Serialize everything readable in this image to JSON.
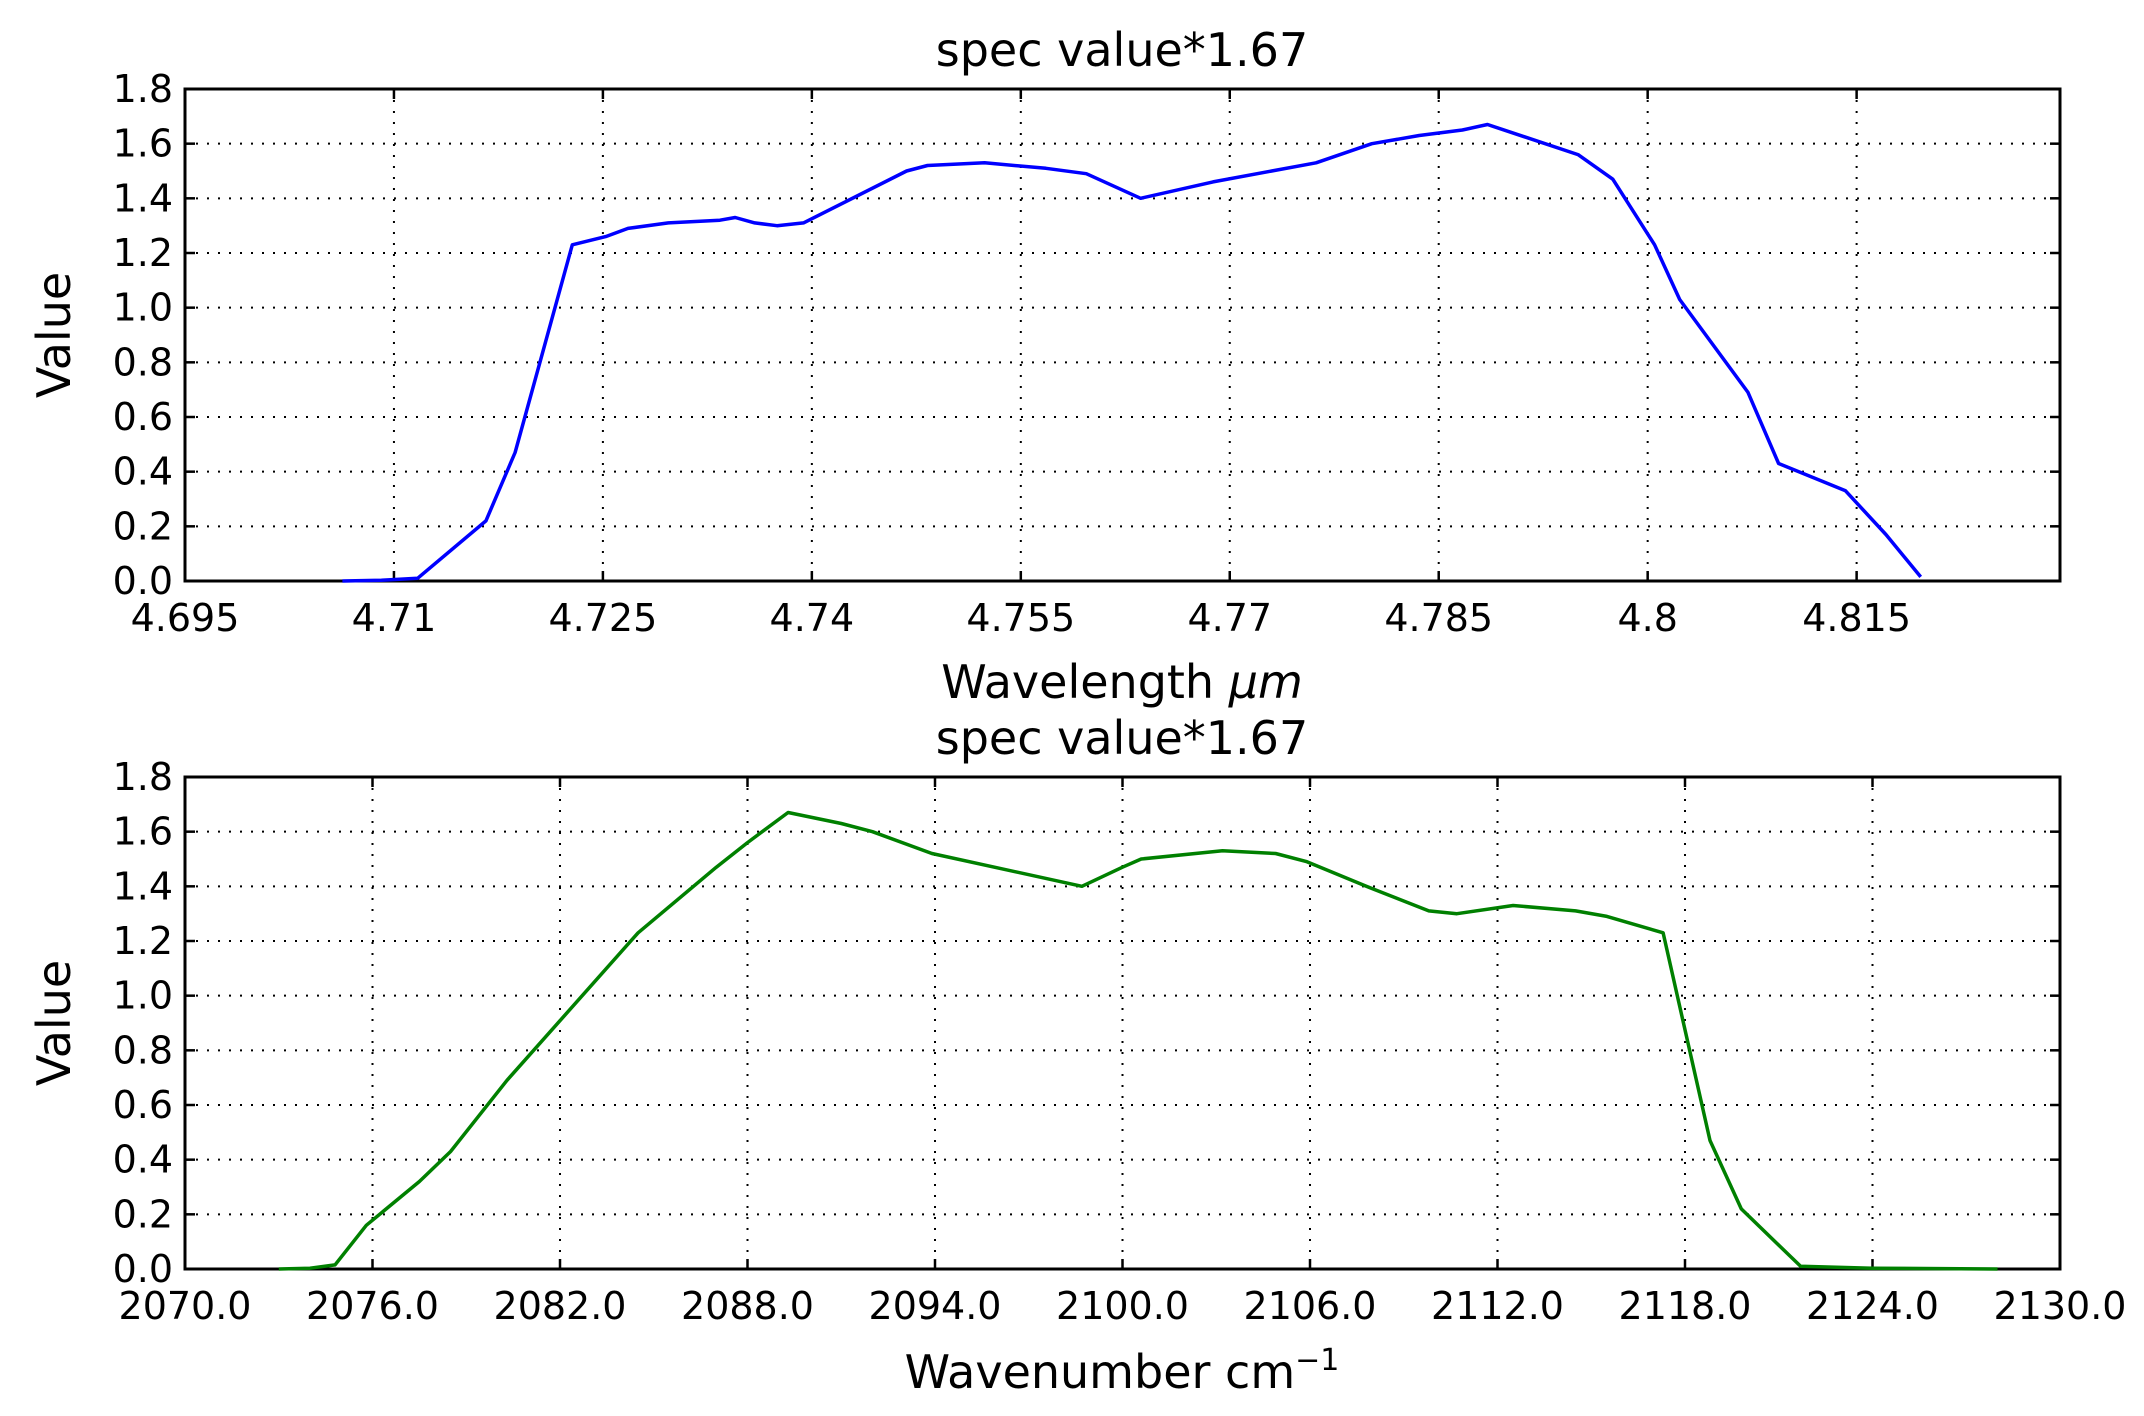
{
  "chart_data": [
    {
      "type": "line",
      "title": "spec value*1.67",
      "xlabel": "Wavelength",
      "xlabel_unit": "μm",
      "ylabel": "Value",
      "xlim": [
        4.695,
        4.8296
      ],
      "ylim": [
        0.0,
        1.8
      ],
      "xticks": [
        4.695,
        4.71,
        4.725,
        4.74,
        4.755,
        4.77,
        4.785,
        4.8,
        4.815
      ],
      "xtick_labels": [
        "4.695",
        "4.71",
        "4.725",
        "4.74",
        "4.755",
        "4.77",
        "4.785",
        "4.8",
        "4.815"
      ],
      "yticks": [
        0.0,
        0.2,
        0.4,
        0.6,
        0.8,
        1.0,
        1.2,
        1.4,
        1.6,
        1.8
      ],
      "ytick_labels": [
        "0.0",
        "0.2",
        "0.4",
        "0.6",
        "0.8",
        "1.0",
        "1.2",
        "1.4",
        "1.6",
        "1.8"
      ],
      "grid": true,
      "color": "#0000ff",
      "series": [
        {
          "x": [
            4.7063,
            4.7091,
            4.7117,
            4.7166,
            4.7187,
            4.7228,
            4.7252,
            4.7268,
            4.7297,
            4.7334,
            4.7345,
            4.7359,
            4.7375,
            4.7394,
            4.7468,
            4.7483,
            4.7524,
            4.7568,
            4.7597,
            4.7636,
            4.7688,
            4.7762,
            4.7802,
            4.7836,
            4.7867,
            4.7885,
            4.795,
            4.7975,
            4.8005,
            4.8023,
            4.8072,
            4.8094,
            4.8142,
            4.8171,
            4.8196
          ],
          "y": [
            0.0,
            0.003,
            0.01,
            0.22,
            0.47,
            1.23,
            1.26,
            1.29,
            1.31,
            1.32,
            1.33,
            1.31,
            1.3,
            1.31,
            1.5,
            1.52,
            1.53,
            1.51,
            1.49,
            1.4,
            1.46,
            1.53,
            1.6,
            1.63,
            1.65,
            1.67,
            1.56,
            1.47,
            1.23,
            1.03,
            0.69,
            0.43,
            0.33,
            0.17,
            0.015
          ]
        }
      ]
    },
    {
      "type": "line",
      "title": "spec value*1.67",
      "xlabel": "Wavenumber cm",
      "xlabel_unit": "−1",
      "ylabel": "Value",
      "xlim": [
        2070.0,
        2130.0
      ],
      "ylim": [
        0.0,
        1.8
      ],
      "xticks": [
        2070.0,
        2076.0,
        2082.0,
        2088.0,
        2094.0,
        2100.0,
        2106.0,
        2112.0,
        2118.0,
        2124.0,
        2130.0
      ],
      "xtick_labels": [
        "2070.0",
        "2076.0",
        "2082.0",
        "2088.0",
        "2094.0",
        "2100.0",
        "2106.0",
        "2112.0",
        "2118.0",
        "2124.0",
        "2130.0"
      ],
      "yticks": [
        0.0,
        0.2,
        0.4,
        0.6,
        0.8,
        1.0,
        1.2,
        1.4,
        1.6,
        1.8
      ],
      "ytick_labels": [
        "0.0",
        "0.2",
        "0.4",
        "0.6",
        "0.8",
        "1.0",
        "1.2",
        "1.4",
        "1.6",
        "1.8"
      ],
      "grid": true,
      "color": "#008000",
      "series": [
        {
          "x": [
            2073.0,
            2074.0,
            2074.8,
            2075.8,
            2077.5,
            2078.5,
            2080.3,
            2084.5,
            2087.0,
            2088.0,
            2089.3,
            2091.0,
            2092.0,
            2093.9,
            2098.7,
            2100.0,
            2100.6,
            2103.2,
            2104.9,
            2105.9,
            2107.8,
            2109.8,
            2110.7,
            2112.5,
            2114.5,
            2115.5,
            2117.3,
            2118.8,
            2119.8,
            2121.7,
            2124.0,
            2128.0
          ],
          "y": [
            0.0,
            0.003,
            0.015,
            0.16,
            0.32,
            0.43,
            0.69,
            1.23,
            1.47,
            1.56,
            1.67,
            1.63,
            1.6,
            1.52,
            1.4,
            1.47,
            1.5,
            1.53,
            1.52,
            1.49,
            1.4,
            1.31,
            1.3,
            1.33,
            1.31,
            1.29,
            1.23,
            0.47,
            0.22,
            0.01,
            0.003,
            0.0
          ]
        }
      ]
    }
  ]
}
